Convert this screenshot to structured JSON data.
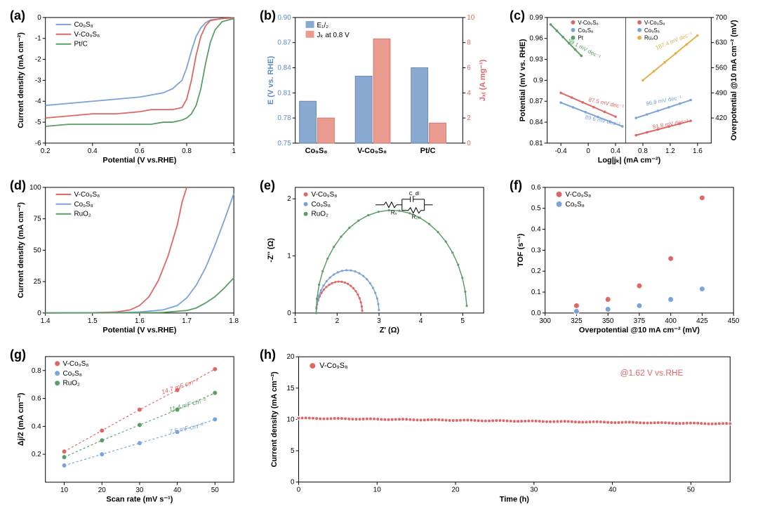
{
  "colors": {
    "red": "#e06666",
    "blue": "#7aa3d9",
    "darkblue": "#5b8bc9",
    "green": "#5a9e67",
    "yellow": "#e3b04b",
    "bar_blue": "#8aa9d0",
    "bar_red": "#e99b8f",
    "axis": "#000000"
  },
  "panelA": {
    "label": "(a)",
    "type": "line",
    "xlabel": "Potential (V vs.RHE)",
    "ylabel": "Current density (mA cm⁻²)",
    "xlim": [
      0.2,
      1.0
    ],
    "xtick_step": 0.2,
    "ylim": [
      -6,
      0
    ],
    "ytick_step": 1,
    "series": [
      {
        "name": "Co₉S₈",
        "color": "#7aa3d9",
        "x": [
          0.2,
          0.3,
          0.4,
          0.5,
          0.6,
          0.65,
          0.7,
          0.74,
          0.78,
          0.8,
          0.82,
          0.84,
          0.86,
          0.88,
          0.9,
          0.95,
          1.0
        ],
        "y": [
          -4.2,
          -4.1,
          -4.0,
          -3.9,
          -3.8,
          -3.7,
          -3.6,
          -3.4,
          -3.0,
          -2.4,
          -1.6,
          -0.9,
          -0.5,
          -0.25,
          -0.12,
          -0.05,
          -0.02
        ]
      },
      {
        "name": "V-Co₉S₈",
        "color": "#e06666",
        "x": [
          0.2,
          0.3,
          0.4,
          0.5,
          0.6,
          0.65,
          0.7,
          0.74,
          0.78,
          0.8,
          0.82,
          0.84,
          0.86,
          0.88,
          0.9,
          0.95,
          1.0
        ],
        "y": [
          -4.8,
          -4.7,
          -4.6,
          -4.6,
          -4.5,
          -4.4,
          -4.4,
          -4.4,
          -4.3,
          -3.9,
          -3.0,
          -1.8,
          -0.9,
          -0.4,
          -0.15,
          -0.05,
          -0.02
        ]
      },
      {
        "name": "Pt/C",
        "color": "#5a9e67",
        "x": [
          0.2,
          0.3,
          0.4,
          0.5,
          0.6,
          0.65,
          0.7,
          0.74,
          0.78,
          0.8,
          0.82,
          0.84,
          0.86,
          0.88,
          0.9,
          0.92,
          0.95,
          1.0
        ],
        "y": [
          -5.2,
          -5.1,
          -5.1,
          -5.1,
          -5.1,
          -5.1,
          -5.0,
          -5.0,
          -4.9,
          -4.8,
          -4.6,
          -4.2,
          -3.4,
          -2.2,
          -1.2,
          -0.6,
          -0.2,
          -0.05
        ]
      }
    ]
  },
  "panelB": {
    "label": "(b)",
    "type": "bar",
    "ylabel_left": "E (V vs. RHE)",
    "ylabel_right": "Jₓ₍ (A mg⁻¹)",
    "ylim_left": [
      0.75,
      0.9
    ],
    "ytick_left": [
      0.75,
      0.78,
      0.81,
      0.84,
      0.87,
      0.9
    ],
    "ylim_right": [
      0,
      10
    ],
    "ytick_right": [
      0,
      2,
      4,
      6,
      8,
      10
    ],
    "categories": [
      "Co₉S₈",
      "V-Co₉S₈",
      "Pt/C"
    ],
    "series_left": {
      "name": "E₁/₂",
      "color": "#8aa9d0",
      "values": [
        0.8,
        0.83,
        0.84
      ]
    },
    "series_right": {
      "name": "Jₖ at 0.8 V",
      "color": "#e99b8f",
      "values": [
        2.0,
        8.3,
        1.6
      ]
    }
  },
  "panelC": {
    "label": "(c)",
    "type": "line",
    "xlabel": "Log|jₖ| (mA cm⁻²)",
    "ylabel_left": "Potential (mV vs. RHE)",
    "ylabel_right": "Overpotential @10 mA cm⁻² (mV)",
    "xlim": [
      -0.6,
      1.8
    ],
    "xticks": [
      -0.4,
      0,
      0.4,
      0.8,
      1.2,
      1.6
    ],
    "ylim_left": [
      0.81,
      0.99
    ],
    "ytick_left": [
      0.81,
      0.84,
      0.87,
      0.9,
      0.93,
      0.96,
      0.99
    ],
    "ylim_right": [
      350,
      700
    ],
    "ytick_right": [
      420,
      490,
      560,
      630,
      700
    ],
    "left_series": [
      {
        "name": "V-Co₉S₈",
        "color": "#e06666",
        "slope": "87.5 mV dec⁻¹",
        "x": [
          -0.4,
          0.4
        ],
        "y": [
          0.882,
          0.848
        ]
      },
      {
        "name": "Co₉S₈",
        "color": "#7aa3d9",
        "slope": "89.6 mV dec⁻¹",
        "x": [
          -0.4,
          0.5
        ],
        "y": [
          0.868,
          0.834
        ]
      },
      {
        "name": "Pt",
        "color": "#5a9e67",
        "slope": "99.1 mV dec⁻¹",
        "x": [
          -0.55,
          -0.1
        ],
        "y": [
          0.98,
          0.935
        ]
      }
    ],
    "right_series": [
      {
        "name": "V-Co₉S₈",
        "color": "#e06666",
        "slope": "81.8 mV dec⁻¹",
        "x": [
          0.7,
          1.5
        ],
        "y_mv": [
          372,
          412
        ]
      },
      {
        "name": "Co₉S₈",
        "color": "#7aa3d9",
        "slope": "96.9 mV dec⁻¹",
        "x": [
          0.7,
          1.5
        ],
        "y_mv": [
          420,
          470
        ]
      },
      {
        "name": "Ru₂O",
        "color": "#e3b04b",
        "slope": "187.4 mV dec⁻¹",
        "x": [
          0.8,
          1.6
        ],
        "y_mv": [
          525,
          650
        ]
      }
    ]
  },
  "panelD": {
    "label": "(d)",
    "type": "line",
    "xlabel": "Potential (V vs.RHE)",
    "ylabel": "Current density (mA cm⁻²)",
    "xlim": [
      1.4,
      1.8
    ],
    "xtick_step": 0.1,
    "ylim": [
      0,
      100
    ],
    "ytick_step": 25,
    "series": [
      {
        "name": "V-Co₉S₈",
        "color": "#e06666",
        "x": [
          1.4,
          1.5,
          1.55,
          1.58,
          1.6,
          1.62,
          1.64,
          1.66,
          1.68,
          1.69,
          1.7
        ],
        "y": [
          0.1,
          0.3,
          0.8,
          2.5,
          6,
          13,
          26,
          45,
          70,
          88,
          100
        ]
      },
      {
        "name": "Co₉S₈",
        "color": "#7aa3d9",
        "x": [
          1.4,
          1.55,
          1.6,
          1.65,
          1.68,
          1.7,
          1.72,
          1.74,
          1.76,
          1.78,
          1.8
        ],
        "y": [
          0.1,
          0.3,
          0.8,
          2.5,
          6,
          12,
          22,
          36,
          54,
          74,
          95
        ]
      },
      {
        "name": "RuO₂",
        "color": "#5a9e67",
        "x": [
          1.4,
          1.6,
          1.65,
          1.7,
          1.72,
          1.74,
          1.76,
          1.78,
          1.8
        ],
        "y": [
          0.05,
          0.2,
          0.5,
          2,
          4,
          8,
          13,
          20,
          28
        ]
      }
    ]
  },
  "panelE": {
    "label": "(e)",
    "type": "scatter+line",
    "xlabel": "Z' (Ω)",
    "ylabel": "-Z'' (Ω)",
    "xlim": [
      1,
      5.5
    ],
    "xticks": [
      1,
      2,
      3,
      4,
      5
    ],
    "ylim": [
      0,
      2.2
    ],
    "yticks": [
      0,
      1,
      2
    ],
    "circuit": {
      "Rs": "Rₛ",
      "Rct": "R꜀ₜ",
      "Cdl": "C_dl"
    },
    "series": [
      {
        "name": "V-Co₉S₈",
        "color": "#e06666",
        "center_x": 2.05,
        "radius": 0.55
      },
      {
        "name": "Co₉S₈",
        "color": "#7aa3d9",
        "center_x": 2.25,
        "radius": 0.75
      },
      {
        "name": "RuO₂",
        "color": "#5a9e67",
        "center_x": 3.3,
        "radius": 1.8
      }
    ]
  },
  "panelF": {
    "label": "(f)",
    "type": "scatter",
    "xlabel": "Overpotential @10 mA cm⁻² (mV)",
    "ylabel": "TOF (s⁻¹)",
    "xlim": [
      300,
      450
    ],
    "xtick_step": 25,
    "ylim": [
      0.0,
      0.6
    ],
    "ytick_step": 0.1,
    "series": [
      {
        "name": "V-Co₉S₈",
        "color": "#e06666",
        "x": [
          325,
          350,
          375,
          400,
          425
        ],
        "y": [
          0.035,
          0.065,
          0.13,
          0.26,
          0.55
        ]
      },
      {
        "name": "Co₉S₈",
        "color": "#7aa3d9",
        "x": [
          325,
          350,
          375,
          400,
          425
        ],
        "y": [
          0.008,
          0.018,
          0.035,
          0.065,
          0.115
        ]
      }
    ]
  },
  "panelG": {
    "label": "(g)",
    "type": "scatter+line",
    "xlabel": "Scan rate (mV s⁻¹)",
    "ylabel": "Δj/2 (mA cm⁻²)",
    "xlim": [
      5,
      55
    ],
    "xticks": [
      10,
      20,
      30,
      40,
      50
    ],
    "ylim": [
      0.0,
      0.9
    ],
    "yticks": [
      0.2,
      0.4,
      0.6,
      0.8
    ],
    "series": [
      {
        "name": "V-Co₉S₈",
        "color": "#e06666",
        "cap": "14.7 mF cm⁻²",
        "x": [
          10,
          20,
          30,
          40,
          50
        ],
        "y": [
          0.22,
          0.37,
          0.52,
          0.66,
          0.81
        ]
      },
      {
        "name": "Co₉S₈",
        "color": "#7aa3d9",
        "cap": "7.5 mF cm⁻²",
        "x": [
          10,
          20,
          30,
          40,
          50
        ],
        "y": [
          0.12,
          0.2,
          0.28,
          0.36,
          0.45
        ]
      },
      {
        "name": "RuO₂",
        "color": "#5a9e67",
        "cap": "11.4 mF cm⁻²",
        "x": [
          10,
          20,
          30,
          40,
          50
        ],
        "y": [
          0.18,
          0.3,
          0.41,
          0.52,
          0.64
        ]
      }
    ]
  },
  "panelH": {
    "label": "(h)",
    "type": "line",
    "xlabel": "Time (h)",
    "ylabel": "Current density (mA cm⁻²)",
    "xlim": [
      0,
      55
    ],
    "xtick_step": 10,
    "ylim": [
      0,
      20
    ],
    "ytick_step": 5,
    "annotation": "@1.62 V vs.RHE",
    "series": [
      {
        "name": "V-Co₉S₈",
        "color": "#e06666",
        "start_y": 10.2,
        "end_y": 9.3
      }
    ]
  }
}
